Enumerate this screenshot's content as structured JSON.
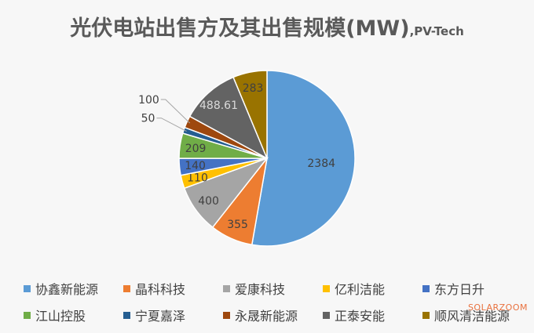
{
  "chart_data": {
    "type": "pie",
    "title": "光伏电站出售方及其出售规模(MW)",
    "subtitle": ",PV-Tech",
    "slices": [
      {
        "name": "协鑫新能源",
        "value": 2384,
        "label": "2384",
        "color": "#5b9bd5"
      },
      {
        "name": "晶科科技",
        "value": 355,
        "label": "355",
        "color": "#ed7d31"
      },
      {
        "name": "爱康科技",
        "value": 400,
        "label": "400",
        "color": "#a5a5a5"
      },
      {
        "name": "亿利洁能",
        "value": 110,
        "label": "110",
        "color": "#ffc000"
      },
      {
        "name": "东方日升",
        "value": 140,
        "label": "140",
        "color": "#4472c4"
      },
      {
        "name": "江山控股",
        "value": 209,
        "label": "209",
        "color": "#70ad47"
      },
      {
        "name": "宁夏嘉泽",
        "value": 50,
        "label": "50",
        "color": "#255e91"
      },
      {
        "name": "永晟新能源",
        "value": 100,
        "label": "100",
        "color": "#9e480e"
      },
      {
        "name": "正泰安能",
        "value": 488.61,
        "label": "488.61",
        "color": "#636363"
      },
      {
        "name": "顺风清洁能源",
        "value": 283,
        "label": "283",
        "color": "#997300"
      }
    ],
    "legend_position": "bottom"
  },
  "watermark": "SOLARZOOM"
}
